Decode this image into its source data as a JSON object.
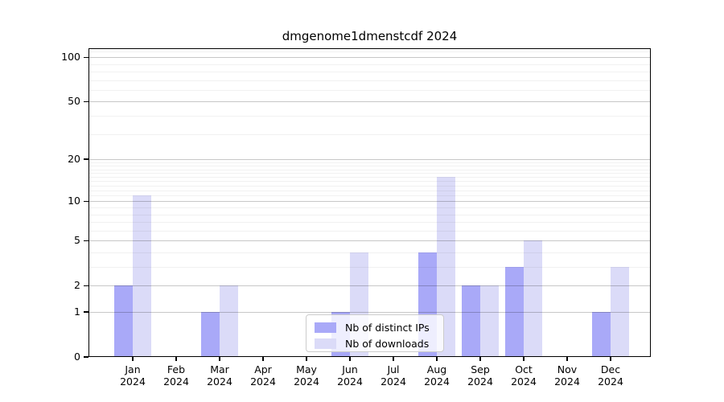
{
  "chart_data": {
    "type": "bar",
    "title": "dmgenome1dmenstcdf 2024",
    "categories": [
      "Jan",
      "Feb",
      "Mar",
      "Apr",
      "May",
      "Jun",
      "Jul",
      "Aug",
      "Sep",
      "Oct",
      "Nov",
      "Dec"
    ],
    "category_year": "2024",
    "series": [
      {
        "name": "Nb of distinct IPs",
        "color": "#a9a9f8",
        "values": [
          2,
          0,
          1,
          0,
          0,
          1,
          0,
          4,
          2,
          3,
          0,
          1
        ]
      },
      {
        "name": "Nb of downloads",
        "color": "#dbdbf8",
        "values": [
          11,
          0,
          2,
          0,
          0,
          4,
          0,
          15,
          2,
          5,
          0,
          3
        ]
      }
    ],
    "xlabel": "",
    "ylabel": "",
    "yscale": "log1p",
    "ylim": [
      0,
      115
    ],
    "y_ticks": [
      0,
      1,
      2,
      5,
      10,
      20,
      50,
      100
    ],
    "y_minor_ticks": [
      3,
      4,
      6,
      7,
      8,
      9,
      11,
      12,
      13,
      14,
      15,
      16,
      17,
      18,
      19,
      30,
      40,
      60,
      70,
      80,
      90,
      110
    ],
    "grid": "on",
    "legend_position": "lower center",
    "colors": {
      "axis": "#000000",
      "background": "#ffffff",
      "grid_major": "#c7c7c7",
      "grid_minor": "#f1f1f1",
      "legend_border": "#cccccc"
    }
  }
}
